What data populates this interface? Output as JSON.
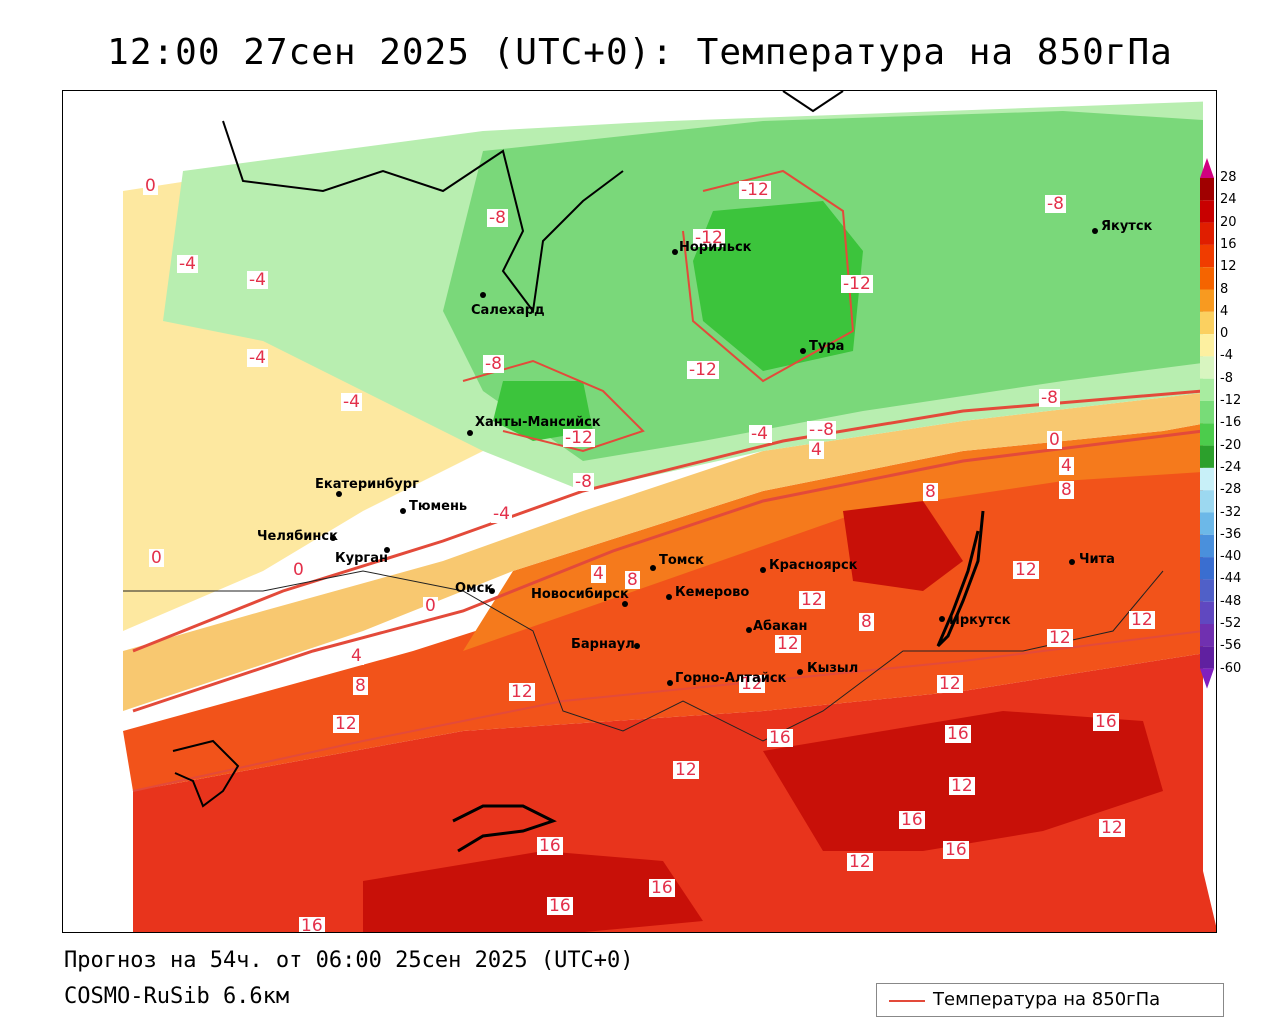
{
  "title": "12:00 27сен 2025 (UTC+0): Температура на 850гПа",
  "forecast_text": "Прогноз на 54ч. от 06:00 25сен 2025 (UTC+0)",
  "model_text": "COSMO-RuSib 6.6км",
  "legend": {
    "line_label": "Температура на 850гПа",
    "line_color": "#e34a3a"
  },
  "colorbar": {
    "labels": [
      "28",
      "24",
      "20",
      "16",
      "12",
      "8",
      "4",
      "0",
      "-4",
      "-8",
      "-12",
      "-16",
      "-20",
      "-24",
      "-28",
      "-32",
      "-36",
      "-40",
      "-44",
      "-48",
      "-52",
      "-56",
      "-60"
    ],
    "colors": [
      "#a00000",
      "#c80000",
      "#e01e00",
      "#f03c00",
      "#f56400",
      "#f89a20",
      "#fbd060",
      "#fdf0a0",
      "#d8f5c0",
      "#a8eca0",
      "#78dc78",
      "#4ccc4c",
      "#2ca02c",
      "#c8f0f8",
      "#9cd8f0",
      "#6cb8e8",
      "#4a90dc",
      "#3a6ed0",
      "#5060c8",
      "#6048c0",
      "#7030b0",
      "#6020a0"
    ],
    "top_arrow_color": "#d00080",
    "bottom_arrow_color": "#8020c0"
  },
  "cities": [
    {
      "name": "Якутск"
    },
    {
      "name": "Норильск"
    },
    {
      "name": "Салехард"
    },
    {
      "name": "Тура"
    },
    {
      "name": "Ханты-Мансийск"
    },
    {
      "name": "Екатеринбург"
    },
    {
      "name": "Тюмень"
    },
    {
      "name": "Челябинск"
    },
    {
      "name": "Курган"
    },
    {
      "name": "Омск"
    },
    {
      "name": "Новосибирск"
    },
    {
      "name": "Томск"
    },
    {
      "name": "Кемерово"
    },
    {
      "name": "Красноярск"
    },
    {
      "name": "Барнаул"
    },
    {
      "name": "Абакан"
    },
    {
      "name": "Горно-Алтайск"
    },
    {
      "name": "Кызыл"
    },
    {
      "name": "Иркутск"
    },
    {
      "name": "Чита"
    }
  ],
  "isotherm_labels": [
    "0",
    "-4",
    "-4",
    "-4",
    "-4",
    "-8",
    "-8",
    "-8",
    "-12",
    "-12",
    "-12",
    "-12",
    "-12",
    "-8",
    "-8",
    "-4",
    "-4",
    "0",
    "0",
    "0",
    "4",
    "8",
    "4",
    "8",
    "8",
    "4",
    "8",
    "12",
    "12",
    "12",
    "12",
    "12",
    "12",
    "12",
    "12",
    "12",
    "16",
    "16",
    "16",
    "16",
    "16",
    "16",
    "16",
    "16",
    "16",
    "12",
    "12",
    "12",
    "12",
    "-8",
    "-4",
    "-8",
    "4",
    "8",
    "0"
  ]
}
